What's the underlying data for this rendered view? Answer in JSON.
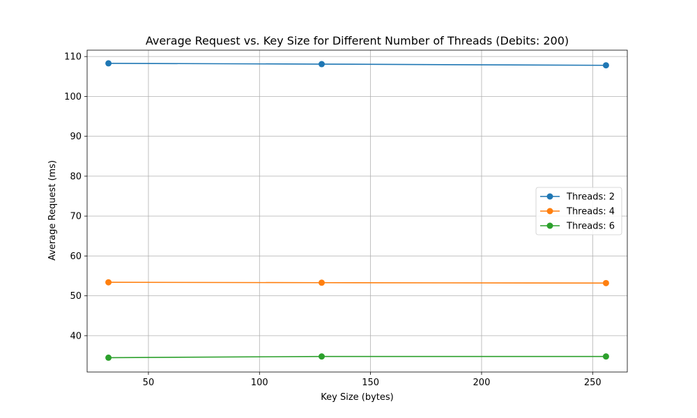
{
  "chart_data": {
    "type": "line",
    "title": "Average Request vs. Key Size for Different Number of Threads (Debits: 200)",
    "xlabel": "Key Size (bytes)",
    "ylabel": "Average Request (ms)",
    "x": [
      32,
      128,
      256
    ],
    "xlim": [
      22.4,
      265.6
    ],
    "ylim": [
      30.9,
      111.6
    ],
    "xticks": [
      50,
      100,
      150,
      200,
      250
    ],
    "yticks": [
      40,
      50,
      60,
      70,
      80,
      90,
      100,
      110
    ],
    "grid": true,
    "legend_position": "center-right",
    "series": [
      {
        "name": "Threads: 2",
        "values": [
          108.3,
          108.1,
          107.8
        ],
        "color": "#1f77b4"
      },
      {
        "name": "Threads: 4",
        "values": [
          53.4,
          53.3,
          53.2
        ],
        "color": "#ff7f0e"
      },
      {
        "name": "Threads: 6",
        "values": [
          34.5,
          34.8,
          34.8
        ],
        "color": "#2ca02c"
      }
    ]
  }
}
